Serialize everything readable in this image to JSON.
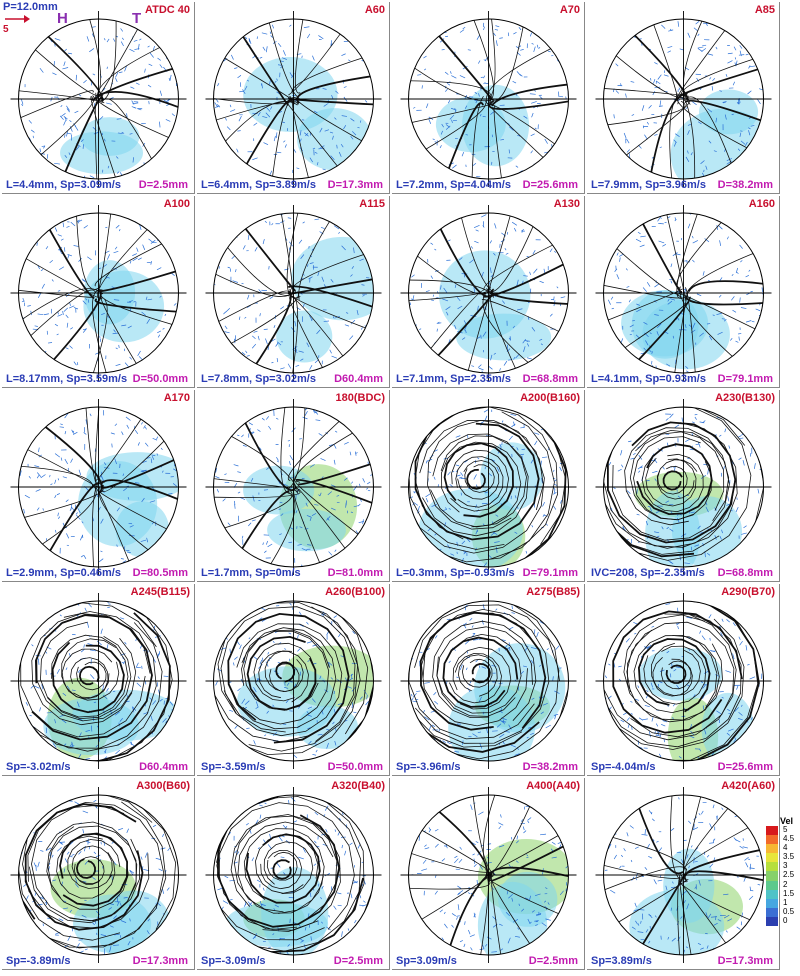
{
  "header": {
    "p": "P=12.0mm",
    "scale_value": "5",
    "h_mark": "H",
    "t_mark": "T"
  },
  "colors": {
    "title": "#c8102e",
    "left_caption": "#2a3cb5",
    "right_caption": "#c21bb0",
    "streamline": "#111111",
    "vector": "#2a6fd6",
    "low_vel": "#7fd6ee",
    "mid_vel": "#8ed36a"
  },
  "chart_data": [
    {
      "type": "vector-field",
      "title": "ATDC 40",
      "caption_left": "L=4.4mm, Sp=3.09m/s",
      "caption_right": "D=2.5mm"
    },
    {
      "type": "vector-field",
      "title": "A60",
      "caption_left": "L=6.4mm, Sp=3.89m/s",
      "caption_right": "D=17.3mm"
    },
    {
      "type": "vector-field",
      "title": "A70",
      "caption_left": "L=7.2mm, Sp=4.04m/s",
      "caption_right": "D=25.6mm"
    },
    {
      "type": "vector-field",
      "title": "A85",
      "caption_left": "L=7.9mm, Sp=3.96m/s",
      "caption_right": "D=38.2mm"
    },
    {
      "type": "vector-field",
      "title": "A100",
      "caption_left": "L=8.17mm, Sp=3.59m/s",
      "caption_right": "D=50.0mm"
    },
    {
      "type": "vector-field",
      "title": "A115",
      "caption_left": "L=7.8mm, Sp=3.02m/s",
      "caption_right": "D60.4mm"
    },
    {
      "type": "vector-field",
      "title": "A130",
      "caption_left": "L=7.1mm, Sp=2.35m/s",
      "caption_right": "D=68.8mm"
    },
    {
      "type": "vector-field",
      "title": "A160",
      "caption_left": "L=4.1mm, Sp=0.93m/s",
      "caption_right": "D=79.1mm"
    },
    {
      "type": "vector-field",
      "title": "A170",
      "caption_left": "L=2.9mm, Sp=0.46m/s",
      "caption_right": "D=80.5mm"
    },
    {
      "type": "vector-field",
      "title": "180(BDC)",
      "caption_left": "L=1.7mm, Sp=0m/s",
      "caption_right": "D=81.0mm"
    },
    {
      "type": "vector-field",
      "title": "A200(B160)",
      "caption_left": "L=0.3mm, Sp=-0.93m/s",
      "caption_right": "D=79.1mm"
    },
    {
      "type": "vector-field",
      "title": "A230(B130)",
      "caption_left": "IVC=208, Sp=-2.35m/s",
      "caption_right": "D=68.8mm"
    },
    {
      "type": "vector-field",
      "title": "A245(B115)",
      "caption_left": "Sp=-3.02m/s",
      "caption_right": "D60.4mm"
    },
    {
      "type": "vector-field",
      "title": "A260(B100)",
      "caption_left": "Sp=-3.59m/s",
      "caption_right": "D=50.0mm"
    },
    {
      "type": "vector-field",
      "title": "A275(B85)",
      "caption_left": "Sp=-3.96m/s",
      "caption_right": "D=38.2mm"
    },
    {
      "type": "vector-field",
      "title": "A290(B70)",
      "caption_left": "Sp=-4.04m/s",
      "caption_right": "D=25.6mm"
    },
    {
      "type": "vector-field",
      "title": "A300(B60)",
      "caption_left": "Sp=-3.89m/s",
      "caption_right": "D=17.3mm"
    },
    {
      "type": "vector-field",
      "title": "A320(B40)",
      "caption_left": "Sp=-3.09m/s",
      "caption_right": "D=2.5mm"
    },
    {
      "type": "vector-field",
      "title": "A400(A40)",
      "caption_left": "Sp=3.09m/s",
      "caption_right": "D=2.5mm"
    },
    {
      "type": "vector-field",
      "title": "A420(A60)",
      "caption_left": "Sp=3.89m/s",
      "caption_right": "D=17.3mm"
    }
  ],
  "colorbar": {
    "title": "Vel",
    "ticks": [
      "5",
      "4.5",
      "4",
      "3.5",
      "3",
      "2.5",
      "2",
      "1.5",
      "1",
      "0.5",
      "0"
    ],
    "colors": [
      "#d7191c",
      "#f26a2a",
      "#f7b733",
      "#e8e53a",
      "#b6df3c",
      "#86d16a",
      "#5cc98c",
      "#4fc3c7",
      "#46a7e0",
      "#3b6fd3",
      "#2b3fb0"
    ]
  }
}
